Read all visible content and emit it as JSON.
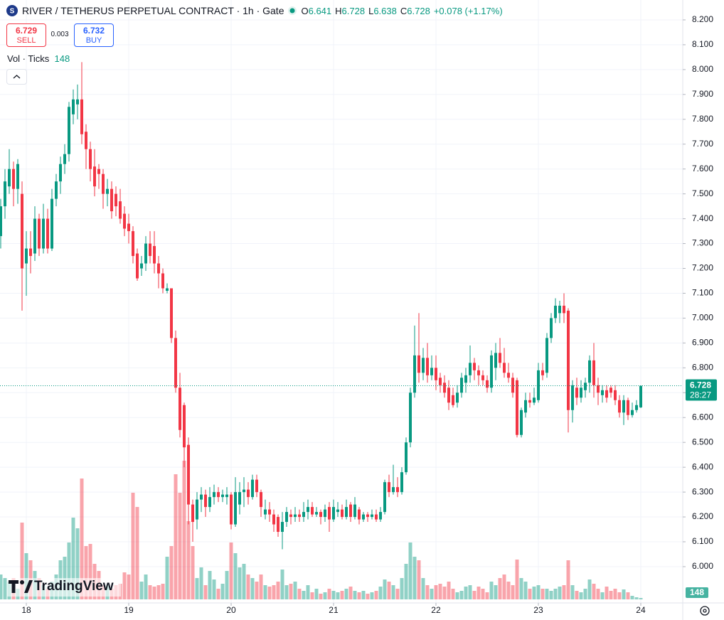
{
  "header": {
    "title": "RIVER / TETHERUS PERPETUAL CONTRACT · 1h · Gate",
    "ohlc": [
      {
        "label": "O",
        "value": 6.641
      },
      {
        "label": "H",
        "value": 6.728
      },
      {
        "label": "L",
        "value": 6.638
      },
      {
        "label": "C",
        "value": 6.728
      }
    ],
    "change": "+0.078 (+1.17%)",
    "sell": {
      "price": 6.729,
      "label": "SELL"
    },
    "spread": 0.003,
    "buy": {
      "price": 6.732,
      "label": "BUY"
    },
    "volume_legend": {
      "label": "Vol · Ticks",
      "value": 148
    }
  },
  "logo": "TradingView",
  "chart_data": {
    "type": "candlestick",
    "up_color": "#089981",
    "down_color": "#f23645",
    "xlim": [
      17.743,
      24.41
    ],
    "xticks": [
      18,
      19,
      20,
      21,
      22,
      23,
      24
    ],
    "ylim": [
      5.854,
      8.28
    ],
    "yticks": [
      {
        "value": 6.0,
        "label": "6.000"
      },
      {
        "value": 6.1,
        "label": "6.100"
      },
      {
        "value": 6.2,
        "label": "6.200"
      },
      {
        "value": 6.3,
        "label": "6.300"
      },
      {
        "value": 6.4,
        "label": "6.400"
      },
      {
        "value": 6.5,
        "label": "6.500"
      },
      {
        "value": 6.6,
        "label": "6.600"
      },
      {
        "value": 6.7,
        "label": "6.700"
      },
      {
        "value": 6.8,
        "label": "6.800"
      },
      {
        "value": 6.9,
        "label": "6.900"
      },
      {
        "value": 7.0,
        "label": "7.000"
      },
      {
        "value": 7.1,
        "label": "7.100"
      },
      {
        "value": 7.2,
        "label": "7.200"
      },
      {
        "value": 7.3,
        "label": "7.300"
      },
      {
        "value": 7.4,
        "label": "7.400"
      },
      {
        "value": 7.5,
        "label": "7.500"
      },
      {
        "value": 7.6,
        "label": "7.600"
      },
      {
        "value": 7.7,
        "label": "7.700"
      },
      {
        "value": 7.8,
        "label": "7.800"
      },
      {
        "value": 7.9,
        "label": "7.900"
      },
      {
        "value": 8.0,
        "label": "8.000"
      },
      {
        "value": 8.1,
        "label": "8.100"
      },
      {
        "value": 8.2,
        "label": "8.200"
      }
    ],
    "grid": true,
    "last_price": {
      "value": 6.728,
      "label": "6.728",
      "countdown": "28:27"
    },
    "last_volume": 148,
    "open": [
      7.33,
      7.45,
      7.53,
      7.6,
      7.52,
      7.5,
      7.22,
      7.28,
      7.26,
      7.4,
      7.28,
      7.4,
      7.28,
      7.48,
      7.55,
      7.62,
      7.66,
      7.82,
      7.86,
      7.88,
      7.75,
      7.68,
      7.61,
      7.6,
      7.58,
      7.5,
      7.52,
      7.5,
      7.47,
      7.42,
      7.38,
      7.35,
      7.26,
      7.2,
      7.22,
      7.3,
      7.29,
      7.22,
      7.18,
      7.11,
      7.12,
      6.92,
      6.72,
      6.65,
      6.49,
      6.25,
      6.19,
      6.27,
      6.29,
      6.24,
      6.28,
      6.3,
      6.28,
      6.28,
      6.29,
      6.17,
      6.25,
      6.3,
      6.31,
      6.28,
      6.35,
      6.3,
      6.21,
      6.23,
      6.21,
      6.2,
      6.14,
      6.18,
      6.21,
      6.2,
      6.21,
      6.2,
      6.22,
      6.24,
      6.21,
      6.22,
      6.2,
      6.24,
      6.19,
      6.22,
      6.23,
      6.2,
      6.25,
      6.2,
      6.23,
      6.19,
      6.21,
      6.2,
      6.21,
      6.19,
      6.22,
      6.34,
      6.3,
      6.32,
      6.3,
      6.38,
      6.5,
      6.7,
      6.85,
      6.78,
      6.84,
      6.77,
      6.8,
      6.76,
      6.74,
      6.72,
      6.69,
      6.66,
      6.7,
      6.74,
      6.77,
      6.82,
      6.79,
      6.77,
      6.75,
      6.72,
      6.8,
      6.86,
      6.82,
      6.78,
      6.76,
      6.75,
      6.53,
      6.62,
      6.67,
      6.66,
      6.67,
      6.79,
      6.78,
      6.92,
      7.0,
      7.02,
      7.05,
      7.03,
      6.63,
      6.72,
      6.68,
      6.71,
      6.74,
      6.83,
      6.73,
      6.69,
      6.71,
      6.72,
      6.71,
      6.67,
      6.62,
      6.67,
      6.61,
      6.63,
      6.641
    ],
    "high": [
      7.48,
      7.6,
      7.68,
      7.63,
      7.64,
      7.55,
      7.35,
      7.35,
      7.45,
      7.42,
      7.46,
      7.44,
      7.52,
      7.58,
      7.65,
      7.7,
      7.87,
      7.92,
      7.94,
      8.03,
      7.78,
      7.71,
      7.68,
      7.62,
      7.6,
      7.56,
      7.55,
      7.53,
      7.52,
      7.45,
      7.42,
      7.37,
      7.28,
      7.25,
      7.33,
      7.35,
      7.35,
      7.25,
      7.2,
      7.14,
      7.12,
      6.95,
      6.78,
      6.66,
      6.52,
      6.27,
      6.3,
      6.32,
      6.31,
      6.32,
      6.33,
      6.32,
      6.31,
      6.32,
      6.3,
      6.36,
      6.34,
      6.36,
      6.34,
      6.37,
      6.37,
      6.31,
      6.27,
      6.26,
      6.23,
      6.21,
      6.22,
      6.24,
      6.23,
      6.24,
      6.23,
      6.26,
      6.27,
      6.26,
      6.24,
      6.23,
      6.25,
      6.26,
      6.27,
      6.26,
      6.25,
      6.27,
      6.26,
      6.28,
      6.24,
      6.22,
      6.22,
      6.23,
      6.23,
      6.24,
      6.35,
      6.37,
      6.41,
      6.36,
      6.4,
      6.52,
      6.72,
      6.97,
      7.02,
      6.88,
      6.9,
      6.85,
      6.85,
      6.78,
      6.77,
      6.75,
      6.72,
      6.73,
      6.78,
      6.8,
      6.89,
      6.84,
      6.81,
      6.79,
      6.77,
      6.87,
      6.9,
      6.92,
      6.88,
      6.82,
      6.78,
      6.76,
      6.64,
      6.7,
      6.7,
      6.72,
      6.82,
      6.82,
      6.94,
      7.02,
      7.08,
      7.07,
      7.1,
      7.04,
      6.75,
      6.76,
      6.75,
      6.76,
      6.85,
      6.9,
      6.76,
      6.73,
      6.73,
      6.73,
      6.73,
      6.69,
      6.69,
      6.68,
      6.66,
      6.67,
      6.728
    ],
    "low": [
      7.28,
      7.4,
      7.5,
      7.45,
      7.46,
      7.03,
      7.09,
      7.18,
      7.23,
      7.25,
      7.26,
      7.26,
      7.27,
      7.45,
      7.5,
      7.58,
      7.63,
      7.78,
      7.8,
      7.7,
      7.6,
      7.55,
      7.49,
      7.52,
      7.44,
      7.45,
      7.4,
      7.41,
      7.38,
      7.33,
      7.3,
      7.22,
      7.15,
      7.17,
      7.19,
      7.22,
      7.18,
      7.12,
      7.1,
      7.1,
      6.9,
      6.7,
      6.52,
      6.4,
      6.17,
      6.1,
      6.15,
      6.22,
      6.2,
      6.22,
      6.25,
      6.26,
      6.26,
      6.25,
      6.15,
      6.16,
      6.21,
      6.24,
      6.25,
      6.27,
      6.28,
      6.2,
      6.19,
      6.18,
      6.14,
      6.12,
      6.07,
      6.16,
      6.17,
      6.18,
      6.18,
      6.18,
      6.19,
      6.2,
      6.2,
      6.17,
      6.18,
      6.14,
      6.18,
      6.2,
      6.19,
      6.19,
      6.18,
      6.19,
      6.17,
      6.18,
      6.18,
      6.19,
      6.18,
      6.18,
      6.21,
      6.28,
      6.29,
      6.28,
      6.29,
      6.37,
      6.48,
      6.68,
      6.74,
      6.75,
      6.74,
      6.75,
      6.71,
      6.7,
      6.68,
      6.63,
      6.64,
      6.64,
      6.68,
      6.7,
      6.74,
      6.75,
      6.73,
      6.73,
      6.7,
      6.7,
      6.75,
      6.8,
      6.76,
      6.74,
      6.68,
      6.52,
      6.52,
      6.6,
      6.64,
      6.65,
      6.66,
      6.75,
      6.76,
      6.9,
      6.98,
      6.98,
      6.98,
      6.54,
      6.58,
      6.65,
      6.66,
      6.68,
      6.7,
      6.68,
      6.65,
      6.66,
      6.66,
      6.68,
      6.65,
      6.6,
      6.57,
      6.59,
      6.6,
      6.62,
      6.638
    ],
    "close": [
      7.45,
      7.55,
      7.6,
      7.52,
      7.62,
      7.2,
      7.28,
      7.25,
      7.4,
      7.28,
      7.4,
      7.28,
      7.48,
      7.55,
      7.62,
      7.66,
      7.85,
      7.88,
      7.88,
      7.74,
      7.68,
      7.6,
      7.53,
      7.58,
      7.5,
      7.52,
      7.43,
      7.45,
      7.4,
      7.36,
      7.35,
      7.25,
      7.16,
      7.22,
      7.3,
      7.25,
      7.22,
      7.18,
      7.12,
      7.12,
      6.92,
      6.72,
      6.55,
      6.48,
      6.25,
      6.18,
      6.27,
      6.29,
      6.24,
      6.28,
      6.3,
      6.28,
      6.29,
      6.29,
      6.17,
      6.3,
      6.3,
      6.31,
      6.28,
      6.35,
      6.3,
      6.24,
      6.23,
      6.21,
      6.17,
      6.14,
      6.18,
      6.22,
      6.2,
      6.21,
      6.2,
      6.22,
      6.24,
      6.21,
      6.22,
      6.2,
      6.23,
      6.19,
      6.24,
      6.23,
      6.2,
      6.24,
      6.2,
      6.25,
      6.19,
      6.21,
      6.2,
      6.21,
      6.19,
      6.22,
      6.34,
      6.3,
      6.32,
      6.3,
      6.38,
      6.5,
      6.7,
      6.85,
      6.78,
      6.84,
      6.77,
      6.8,
      6.75,
      6.73,
      6.7,
      6.66,
      6.65,
      6.7,
      6.76,
      6.77,
      6.82,
      6.79,
      6.77,
      6.75,
      6.72,
      6.85,
      6.86,
      6.82,
      6.78,
      6.76,
      6.7,
      6.53,
      6.63,
      6.67,
      6.66,
      6.68,
      6.79,
      6.77,
      6.92,
      7.0,
      7.05,
      7.05,
      7.02,
      6.63,
      6.73,
      6.68,
      6.72,
      6.74,
      6.83,
      6.73,
      6.7,
      6.71,
      6.68,
      6.7,
      6.67,
      6.62,
      6.67,
      6.61,
      6.63,
      6.65,
      6.728
    ],
    "volume": [
      2625,
      2250,
      1875,
      2250,
      1125,
      8100,
      4875,
      4125,
      3000,
      2250,
      1500,
      1125,
      1875,
      2625,
      4125,
      4500,
      6000,
      8625,
      7500,
      12750,
      5625,
      5850,
      3750,
      3000,
      1500,
      1500,
      1125,
      1500,
      1650,
      2850,
      2625,
      11250,
      9750,
      1875,
      2625,
      1500,
      1350,
      1500,
      1650,
      4500,
      5625,
      13200,
      11250,
      14625,
      8250,
      5625,
      2250,
      3375,
      1500,
      3000,
      2100,
      1125,
      1650,
      3000,
      6000,
      4875,
      3375,
      3750,
      2625,
      2250,
      1875,
      2625,
      1500,
      1350,
      1500,
      1875,
      3150,
      1500,
      1650,
      1875,
      1125,
      900,
      1500,
      750,
      1125,
      600,
      750,
      1125,
      900,
      750,
      900,
      1125,
      1350,
      900,
      750,
      900,
      600,
      750,
      900,
      1350,
      2100,
      1875,
      1500,
      1125,
      2250,
      3750,
      6000,
      4500,
      4125,
      2250,
      1500,
      1125,
      1500,
      1650,
      1350,
      1875,
      1125,
      750,
      900,
      1350,
      1500,
      900,
      1350,
      1125,
      750,
      1875,
      1500,
      2250,
      2625,
      1875,
      1500,
      4200,
      2250,
      1875,
      1125,
      1350,
      1500,
      1125,
      1125,
      900,
      1125,
      1350,
      1500,
      4125,
      1500,
      900,
      750,
      1125,
      2100,
      1650,
      1125,
      750,
      1350,
      900,
      1125,
      750,
      1050,
      750,
      375,
      225,
      148
    ]
  }
}
